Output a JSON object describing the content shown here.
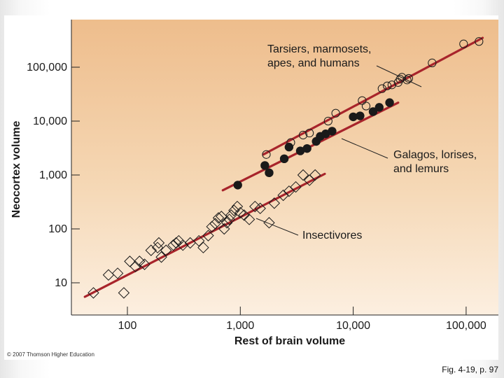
{
  "slide": {
    "copyright": "© 2007 Thomson Higher Education",
    "caption": "Fig. 4-19, p. 97"
  },
  "colors": {
    "panel_background": "#f4dcc0",
    "line": "#a8242b",
    "marker": "#1a1a1a"
  },
  "chart_data": {
    "type": "scatter",
    "xlabel": "Rest of brain volume",
    "ylabel": "Neocortex volume",
    "x_scale": "log",
    "y_scale": "log",
    "xlim": [
      35,
      200000
    ],
    "ylim": [
      4,
      600000
    ],
    "x_ticks": [
      {
        "value": 100,
        "label": "100"
      },
      {
        "value": 1000,
        "label": "1,000"
      },
      {
        "value": 10000,
        "label": "10,000"
      },
      {
        "value": 100000,
        "label": "100,000"
      }
    ],
    "y_ticks": [
      {
        "value": 10,
        "label": "10"
      },
      {
        "value": 100,
        "label": "100"
      },
      {
        "value": 1000,
        "label": "1,000"
      },
      {
        "value": 10000,
        "label": "10,000"
      },
      {
        "value": 100000,
        "label": "100,000"
      }
    ],
    "grid": false,
    "legend": "annotations",
    "series": [
      {
        "name": "Tarsiers, marmosets, apes, and humans",
        "marker": "circle-open",
        "label_lines": [
          "Tarsiers, marmosets,",
          "apes, and humans"
        ],
        "fit": [
          [
            1600,
            2400
          ],
          [
            140000,
            350000
          ]
        ],
        "points": [
          [
            1700,
            2400
          ],
          [
            2800,
            4000
          ],
          [
            3600,
            5500
          ],
          [
            4100,
            6000
          ],
          [
            6000,
            10000
          ],
          [
            7000,
            14000
          ],
          [
            12000,
            24000
          ],
          [
            13000,
            19000
          ],
          [
            18000,
            40000
          ],
          [
            20000,
            45000
          ],
          [
            22000,
            47000
          ],
          [
            25000,
            52000
          ],
          [
            26000,
            60000
          ],
          [
            27000,
            65000
          ],
          [
            30000,
            58000
          ],
          [
            31000,
            62000
          ],
          [
            50000,
            120000
          ],
          [
            95000,
            270000
          ],
          [
            130000,
            300000
          ]
        ]
      },
      {
        "name": "Galagos, lorises, and lemurs",
        "marker": "circle-filled",
        "label_lines": [
          "Galagos, lorises,",
          "and lemurs"
        ],
        "fit": [
          [
            700,
            520
          ],
          [
            25000,
            22000
          ]
        ],
        "points": [
          [
            950,
            650
          ],
          [
            1650,
            1500
          ],
          [
            1800,
            1100
          ],
          [
            2450,
            2000
          ],
          [
            2700,
            3300
          ],
          [
            3400,
            2800
          ],
          [
            3900,
            3100
          ],
          [
            4700,
            4200
          ],
          [
            5100,
            5200
          ],
          [
            5700,
            5800
          ],
          [
            6500,
            6500
          ],
          [
            10000,
            12000
          ],
          [
            11500,
            12500
          ],
          [
            15000,
            15000
          ],
          [
            17000,
            18000
          ],
          [
            21000,
            22000
          ]
        ]
      },
      {
        "name": "Insectivores",
        "marker": "diamond-open",
        "label_lines": [
          "Insectivores"
        ],
        "fit": [
          [
            42,
            5.5
          ],
          [
            5600,
            1050
          ]
        ],
        "points": [
          [
            50,
            6.5
          ],
          [
            68,
            14
          ],
          [
            82,
            15
          ],
          [
            93,
            6.5
          ],
          [
            105,
            25
          ],
          [
            118,
            20
          ],
          [
            128,
            25
          ],
          [
            142,
            22
          ],
          [
            162,
            40
          ],
          [
            185,
            45
          ],
          [
            190,
            55
          ],
          [
            200,
            30
          ],
          [
            220,
            40
          ],
          [
            255,
            50
          ],
          [
            270,
            55
          ],
          [
            285,
            60
          ],
          [
            310,
            50
          ],
          [
            360,
            55
          ],
          [
            430,
            60
          ],
          [
            470,
            45
          ],
          [
            520,
            75
          ],
          [
            560,
            110
          ],
          [
            600,
            125
          ],
          [
            640,
            160
          ],
          [
            680,
            170
          ],
          [
            720,
            100
          ],
          [
            760,
            130
          ],
          [
            800,
            150
          ],
          [
            830,
            180
          ],
          [
            880,
            220
          ],
          [
            940,
            260
          ],
          [
            1000,
            200
          ],
          [
            1080,
            180
          ],
          [
            1200,
            150
          ],
          [
            1350,
            260
          ],
          [
            1500,
            240
          ],
          [
            1800,
            130
          ],
          [
            2000,
            300
          ],
          [
            2400,
            420
          ],
          [
            2700,
            500
          ],
          [
            3100,
            600
          ],
          [
            3600,
            1000
          ],
          [
            4100,
            800
          ],
          [
            4600,
            1000
          ]
        ]
      }
    ]
  }
}
